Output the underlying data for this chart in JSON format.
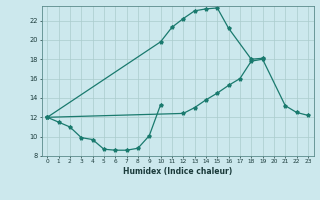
{
  "xlabel": "Humidex (Indice chaleur)",
  "bg_color": "#cce8ed",
  "line_color": "#1a7a6e",
  "grid_color": "#aacccc",
  "ylim": [
    8,
    23.5
  ],
  "xlim": [
    -0.5,
    23.5
  ],
  "yticks": [
    8,
    10,
    12,
    14,
    16,
    18,
    20,
    22
  ],
  "xticks": [
    0,
    1,
    2,
    3,
    4,
    5,
    6,
    7,
    8,
    9,
    10,
    11,
    12,
    13,
    14,
    15,
    16,
    17,
    18,
    19,
    20,
    21,
    22,
    23
  ],
  "curve_bottom_x": [
    0,
    1,
    2,
    3,
    4,
    5,
    6,
    7,
    8,
    9,
    10
  ],
  "curve_bottom_y": [
    12,
    11.5,
    11.0,
    9.9,
    9.7,
    8.7,
    8.6,
    8.6,
    8.8,
    10.1,
    13.3
  ],
  "curve_mid_x": [
    0,
    12,
    13,
    14,
    15,
    16,
    17,
    18,
    19,
    21,
    22,
    23
  ],
  "curve_mid_y": [
    12,
    12.4,
    13.0,
    13.8,
    14.5,
    15.3,
    16.0,
    17.8,
    18.0,
    13.2,
    12.5,
    12.2
  ],
  "curve_top_x": [
    0,
    10,
    11,
    12,
    13,
    14,
    15,
    16,
    18,
    19
  ],
  "curve_top_y": [
    12,
    19.8,
    21.3,
    22.2,
    23.0,
    23.2,
    23.3,
    21.2,
    18.0,
    18.1
  ]
}
